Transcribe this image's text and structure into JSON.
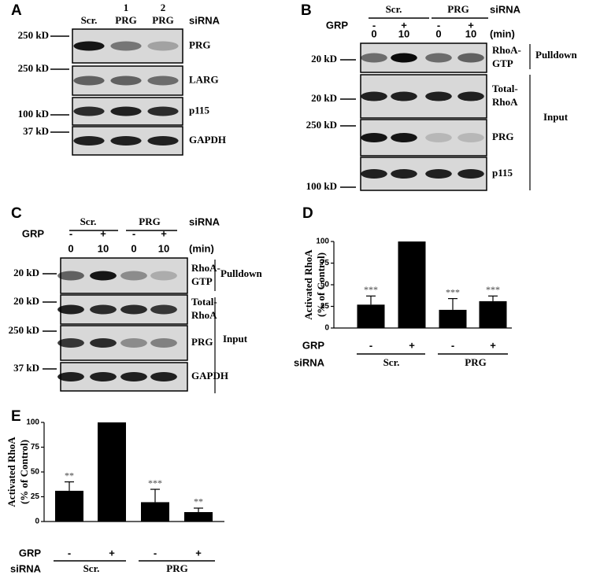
{
  "panel_a": {
    "letter": "A",
    "lanes": [
      "Scr.",
      "PRG",
      "PRG"
    ],
    "lane_numbers": [
      "1",
      "2"
    ],
    "row_label": "siRNA",
    "markers": [
      "250 kD",
      "250 kD",
      "100 kD",
      "37 kD"
    ],
    "proteins": [
      [
        "PRG"
      ],
      [
        "LARG"
      ],
      [
        "p115"
      ],
      [
        "GAPDH"
      ]
    ]
  },
  "panel_b": {
    "letter": "B",
    "groups": [
      "Scr.",
      "PRG"
    ],
    "sirna_label": "siRNA",
    "grp_label": "GRP",
    "grp": [
      "-",
      "+",
      "-",
      "+"
    ],
    "times": [
      "0",
      "10",
      "0",
      "10"
    ],
    "time_label": "(min)",
    "markers": [
      "20 kD",
      "20 kD",
      "250 kD",
      "100 kD"
    ],
    "proteins": [
      [
        "RhoA-",
        "GTP"
      ],
      [
        "Total-",
        "RhoA"
      ],
      [
        "PRG"
      ],
      [
        "p115"
      ]
    ],
    "brackets": [
      "Pulldown",
      "Input"
    ]
  },
  "panel_c": {
    "letter": "C",
    "groups": [
      "Scr.",
      "PRG"
    ],
    "sirna_label": "siRNA",
    "grp_label": "GRP",
    "grp": [
      "-",
      "+",
      "-",
      "+"
    ],
    "times": [
      "0",
      "10",
      "0",
      "10"
    ],
    "time_label": "(min)",
    "markers": [
      "20 kD",
      "20 kD",
      "250 kD",
      "37 kD"
    ],
    "proteins": [
      [
        "RhoA-",
        "GTP"
      ],
      [
        "Total-",
        "RhoA"
      ],
      [
        "PRG"
      ],
      [
        "GAPDH"
      ]
    ],
    "brackets": [
      "Pulldown",
      "Input"
    ]
  },
  "chart_data": [
    {
      "type": "bar",
      "panel": "D",
      "ylabel": "Activated RhoA",
      "ylabel2": "(% of Control)",
      "grp_label": "GRP",
      "grp": [
        "-",
        "+",
        "-",
        "+"
      ],
      "sirna_label": "siRNA",
      "sirna": [
        "Scr.",
        "PRG"
      ],
      "values": [
        27,
        100,
        21,
        31
      ],
      "errors": [
        10,
        null,
        13,
        6
      ],
      "annotations": [
        "***",
        null,
        "***",
        "***"
      ],
      "color": "#000000",
      "ylim": [
        0,
        100
      ],
      "yticks": [
        0,
        25,
        50,
        75,
        100
      ]
    },
    {
      "type": "bar",
      "panel": "E",
      "ylabel": "Activated RhoA",
      "ylabel2": "(% of Control)",
      "grp_label": "GRP",
      "grp": [
        "-",
        "+",
        "-",
        "+"
      ],
      "sirna_label": "siRNA",
      "sirna": [
        "Scr.",
        "PRG"
      ],
      "values": [
        31,
        100,
        19.5,
        9.5
      ],
      "errors": [
        9,
        null,
        13,
        4
      ],
      "annotations": [
        "**",
        null,
        "***",
        "**"
      ],
      "color": "#000000",
      "ylim": [
        0,
        100
      ],
      "yticks": [
        0,
        25,
        50,
        75,
        100
      ]
    }
  ]
}
